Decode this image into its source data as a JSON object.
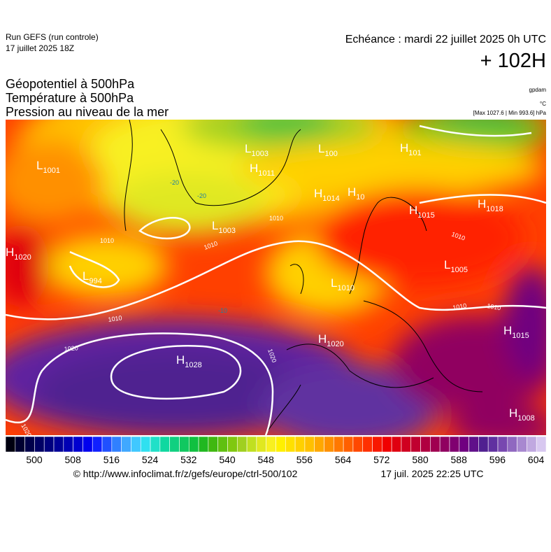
{
  "header": {
    "run": "Run GEFS (run controle)",
    "run_date": "17 juillet 2025 18Z",
    "valid": "Echéance : mardi 22 juillet 2025 0h UTC",
    "lead": "+ 102H",
    "titles": [
      "Géopotentiel à 500hPa",
      "Température à 500hPa",
      "Pression au niveau de la mer"
    ],
    "units": [
      "gpdam",
      "°C",
      "[Max 1027.6 | Min 993.6] hPa"
    ]
  },
  "map": {
    "centers": [
      {
        "letter": "L",
        "value": "1001"
      },
      {
        "letter": "L",
        "value": "1003"
      },
      {
        "letter": "L",
        "value": "100"
      },
      {
        "letter": "H",
        "value": "101"
      },
      {
        "letter": "H",
        "value": "1011"
      },
      {
        "letter": "H",
        "value": "1014"
      },
      {
        "letter": "H",
        "value": "10"
      },
      {
        "letter": "L",
        "value": "1003"
      },
      {
        "letter": "H",
        "value": "1015"
      },
      {
        "letter": "H",
        "value": "1018"
      },
      {
        "letter": "H",
        "value": "1020"
      },
      {
        "letter": "L",
        "value": "994"
      },
      {
        "letter": "L",
        "value": "1005"
      },
      {
        "letter": "L",
        "value": "1010"
      },
      {
        "letter": "H",
        "value": "1020"
      },
      {
        "letter": "H",
        "value": "1028"
      },
      {
        "letter": "H",
        "value": "1015"
      },
      {
        "letter": "H",
        "value": "1008"
      }
    ],
    "isobar_labels": [
      "1010",
      "1010",
      "1010",
      "1020",
      "1020",
      "1020",
      "1010",
      "1010",
      "1010",
      "1010"
    ],
    "temperature_labels": [
      "-20",
      "-20",
      "-10"
    ]
  },
  "colorbar": {
    "colors": [
      "#000010",
      "#000030",
      "#00004a",
      "#000064",
      "#00007e",
      "#000098",
      "#0000b4",
      "#0000d0",
      "#0000ee",
      "#1020ff",
      "#2050ff",
      "#3080ff",
      "#40a8ff",
      "#40c8ff",
      "#30e0f0",
      "#20e0c8",
      "#10d8a0",
      "#10d080",
      "#10c860",
      "#10c040",
      "#20b820",
      "#40b810",
      "#60c010",
      "#80c810",
      "#a0d020",
      "#c0e020",
      "#e0e820",
      "#f8f020",
      "#fff000",
      "#ffe000",
      "#ffd000",
      "#ffc000",
      "#ffa800",
      "#ff9000",
      "#ff7800",
      "#ff6000",
      "#ff4800",
      "#ff3000",
      "#f81800",
      "#f00000",
      "#e00010",
      "#d00020",
      "#c00030",
      "#b00040",
      "#a00050",
      "#900060",
      "#800070",
      "#700080",
      "#60108a",
      "#502090",
      "#6030a0",
      "#7848b0",
      "#9068c0",
      "#a888d0",
      "#c0a8e0",
      "#d8c8f0"
    ],
    "ticks": [
      500,
      508,
      516,
      524,
      532,
      540,
      548,
      556,
      564,
      572,
      580,
      588,
      596,
      604
    ]
  },
  "footer": {
    "source": "© http://www.infoclimat.fr/z/gefs/europe/ctrl-500/102",
    "timestamp": "17 juil. 2025 22:25 UTC"
  }
}
